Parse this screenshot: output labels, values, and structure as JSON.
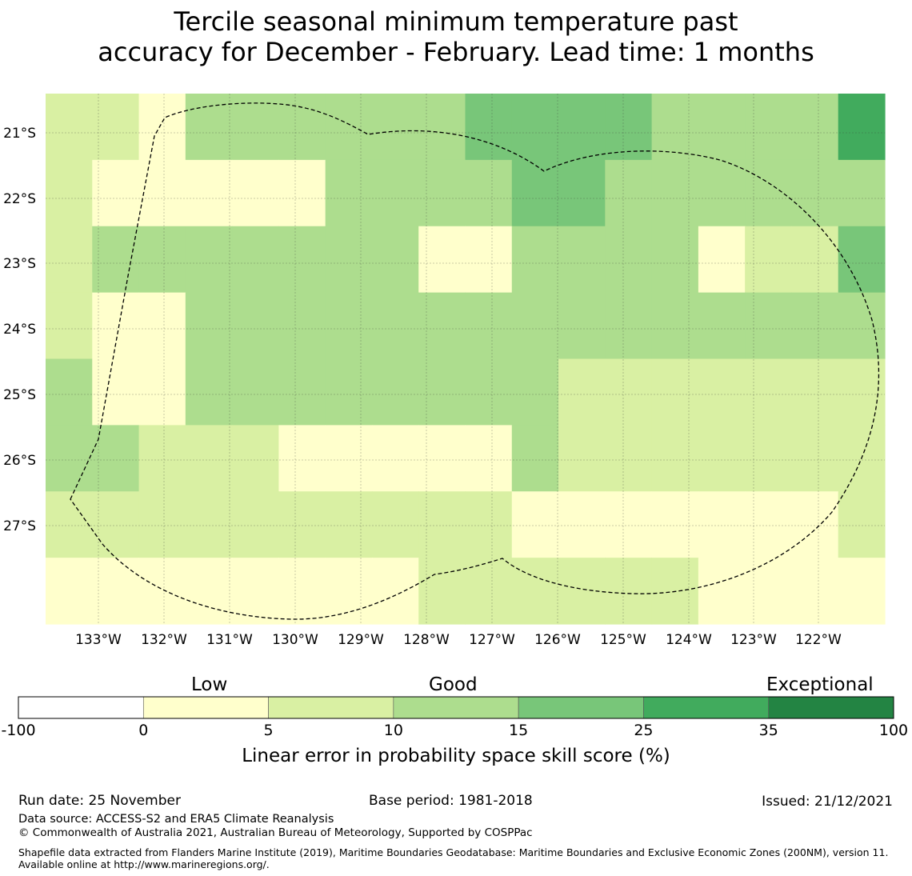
{
  "title": {
    "line1": "Tercile seasonal minimum temperature past",
    "line2": "accuracy for December - February. Lead time: 1 months"
  },
  "map": {
    "lat_labels": [
      "21°S",
      "22°S",
      "23°S",
      "24°S",
      "25°S",
      "26°S",
      "27°S"
    ],
    "lon_labels": [
      "133°W",
      "132°W",
      "131°W",
      "130°W",
      "129°W",
      "128°W",
      "127°W",
      "126°W",
      "125°W",
      "124°W",
      "123°W",
      "122°W"
    ],
    "grid_category_rows": [
      "221333333444433335",
      "211111333344333333",
      "233333331133331224",
      "211333333333333333",
      "311333333332222222",
      "332221111132222222",
      "222222222211111112",
      "111111112222221111"
    ],
    "region_outline": "Exclusive Economic Zone boundary (dashed)"
  },
  "colorbar": {
    "category_labels": [
      "Low",
      "Good",
      "Exceptional"
    ],
    "ticks": [
      "-100",
      "0",
      "5",
      "10",
      "15",
      "25",
      "35",
      "100"
    ],
    "colors": [
      "#ffffff",
      "#ffffcc",
      "#d9f0a3",
      "#addd8e",
      "#78c679",
      "#41ab5d",
      "#238443"
    ],
    "title": "Linear error in probability space skill score (%)"
  },
  "footer": {
    "run_date": "Run date: 25 November",
    "base_period": "Base period: 1981-2018",
    "issued": "Issued: 21/12/2021",
    "data_source": "Data source: ACCESS-S2 and ERA5 Climate Reanalysis",
    "copyright": "© Commonwealth of Australia 2021, Australian Bureau of Meteorology, Supported by COSPPac",
    "shapefile": "Shapefile data extracted from Flanders Marine Institute (2019), Maritime Boundaries Geodatabase: Maritime Boundaries and Exclusive Economic Zones (200NM), version 11. Available online at http://www.marineregions.org/."
  }
}
